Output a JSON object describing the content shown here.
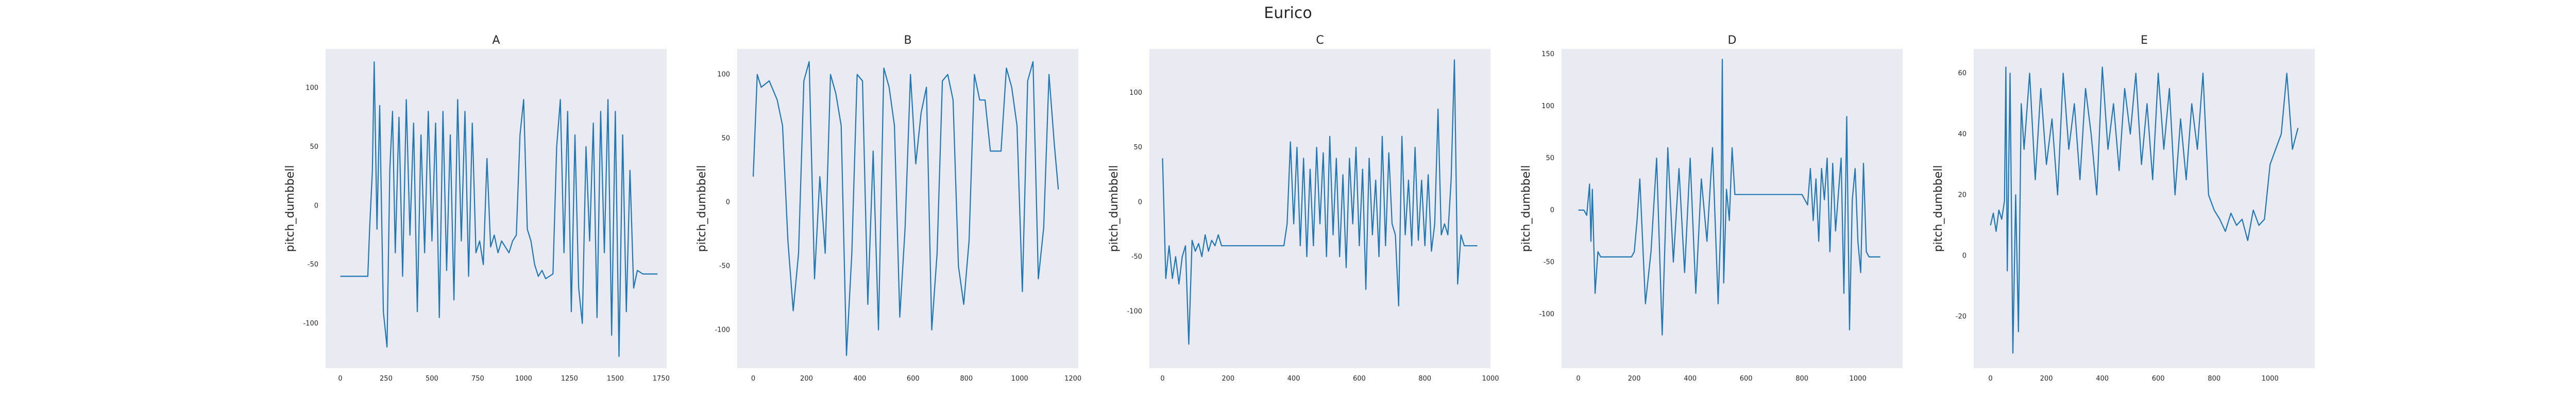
{
  "figure_title": "Eurico",
  "colors": {
    "panel_bg": "#EAEAF2",
    "line": "#1F77B4",
    "text": "#262626"
  },
  "chart_data": [
    {
      "type": "line",
      "title": "A",
      "xlabel": "",
      "ylabel": "pitch_dumbbell",
      "xlim": [
        -80,
        1780
      ],
      "ylim": [
        -138,
        133
      ],
      "xticks": [
        0,
        250,
        500,
        750,
        1000,
        1250,
        1500,
        1750
      ],
      "yticks": [
        -100,
        -50,
        0,
        50,
        100
      ],
      "grid": false,
      "x": [
        0,
        60,
        110,
        150,
        160,
        175,
        185,
        200,
        215,
        235,
        255,
        270,
        285,
        300,
        320,
        340,
        360,
        380,
        400,
        420,
        440,
        460,
        480,
        500,
        520,
        540,
        560,
        580,
        600,
        620,
        640,
        660,
        680,
        700,
        720,
        740,
        760,
        780,
        800,
        820,
        840,
        860,
        880,
        900,
        920,
        940,
        960,
        980,
        1000,
        1020,
        1040,
        1060,
        1080,
        1100,
        1120,
        1140,
        1160,
        1180,
        1200,
        1220,
        1240,
        1260,
        1280,
        1300,
        1320,
        1340,
        1360,
        1380,
        1400,
        1420,
        1440,
        1460,
        1480,
        1500,
        1520,
        1540,
        1560,
        1580,
        1600,
        1620,
        1650,
        1700,
        1730
      ],
      "y": [
        -60,
        -60,
        -60,
        -60,
        -20,
        30,
        122,
        -20,
        85,
        -90,
        -120,
        30,
        80,
        -40,
        75,
        -60,
        90,
        -25,
        70,
        -90,
        60,
        -40,
        80,
        -30,
        70,
        -95,
        80,
        -55,
        60,
        -80,
        90,
        -30,
        80,
        -60,
        70,
        -40,
        -30,
        -50,
        40,
        -35,
        -25,
        -40,
        -30,
        -35,
        -40,
        -30,
        -25,
        60,
        90,
        -20,
        -30,
        -50,
        -60,
        -55,
        -62,
        -60,
        -58,
        50,
        90,
        -40,
        80,
        -90,
        60,
        -70,
        -100,
        50,
        -30,
        70,
        -95,
        80,
        -40,
        90,
        -110,
        80,
        -128,
        60,
        -90,
        30,
        -70,
        -55,
        -58,
        -58,
        -58
      ]
    },
    {
      "type": "line",
      "title": "B",
      "xlabel": "",
      "ylabel": "pitch_dumbbell",
      "xlim": [
        -60,
        1220
      ],
      "ylim": [
        -130,
        120
      ],
      "xticks": [
        0,
        200,
        400,
        600,
        800,
        1000,
        1200
      ],
      "yticks": [
        -100,
        -50,
        0,
        50,
        100
      ],
      "grid": false,
      "x": [
        0,
        15,
        30,
        60,
        90,
        110,
        130,
        150,
        170,
        190,
        210,
        230,
        250,
        270,
        290,
        310,
        330,
        350,
        370,
        390,
        410,
        430,
        450,
        470,
        490,
        510,
        530,
        550,
        570,
        590,
        610,
        630,
        650,
        670,
        690,
        710,
        730,
        750,
        770,
        790,
        810,
        830,
        850,
        870,
        890,
        910,
        930,
        950,
        970,
        990,
        1010,
        1030,
        1050,
        1070,
        1090,
        1110,
        1130,
        1145
      ],
      "y": [
        20,
        100,
        90,
        95,
        80,
        60,
        -30,
        -85,
        -40,
        95,
        110,
        -60,
        20,
        -40,
        100,
        85,
        60,
        -120,
        -40,
        100,
        95,
        -80,
        40,
        -100,
        105,
        90,
        60,
        -90,
        -20,
        100,
        30,
        70,
        90,
        -100,
        -40,
        95,
        100,
        80,
        -50,
        -80,
        -30,
        100,
        80,
        80,
        40,
        40,
        40,
        105,
        90,
        60,
        -70,
        95,
        110,
        -60,
        -20,
        100,
        45,
        10
      ]
    },
    {
      "type": "line",
      "title": "C",
      "xlabel": "",
      "ylabel": "pitch_dumbbell",
      "xlim": [
        -40,
        1000
      ],
      "ylim": [
        -152,
        140
      ],
      "xticks": [
        0,
        200,
        400,
        600,
        800,
        1000
      ],
      "yticks": [
        -100,
        -50,
        0,
        50,
        100
      ],
      "grid": false,
      "x": [
        0,
        10,
        20,
        30,
        40,
        50,
        60,
        70,
        80,
        90,
        100,
        110,
        120,
        130,
        140,
        150,
        160,
        170,
        180,
        200,
        250,
        300,
        350,
        370,
        380,
        390,
        400,
        410,
        420,
        430,
        440,
        450,
        460,
        470,
        480,
        490,
        500,
        510,
        520,
        530,
        540,
        550,
        560,
        570,
        580,
        590,
        600,
        610,
        620,
        630,
        640,
        650,
        660,
        670,
        680,
        690,
        700,
        710,
        720,
        730,
        740,
        750,
        760,
        770,
        780,
        790,
        800,
        810,
        820,
        830,
        840,
        850,
        860,
        870,
        880,
        890,
        900,
        910,
        920,
        930,
        940,
        960
      ],
      "y": [
        40,
        -70,
        -40,
        -70,
        -50,
        -75,
        -50,
        -40,
        -130,
        -35,
        -45,
        -38,
        -50,
        -30,
        -45,
        -35,
        -40,
        -30,
        -40,
        -40,
        -40,
        -40,
        -40,
        -40,
        -20,
        55,
        -20,
        50,
        -40,
        40,
        -50,
        30,
        -40,
        50,
        -20,
        45,
        -50,
        60,
        -30,
        40,
        -50,
        25,
        -60,
        40,
        -20,
        50,
        -40,
        30,
        -80,
        40,
        -30,
        20,
        -50,
        60,
        -40,
        45,
        -20,
        -30,
        -95,
        60,
        -30,
        20,
        -40,
        50,
        -35,
        20,
        -40,
        25,
        -45,
        -20,
        85,
        -30,
        -20,
        -30,
        20,
        130,
        -75,
        -30,
        -40,
        -40,
        -40,
        -40
      ]
    },
    {
      "type": "line",
      "title": "D",
      "xlabel": "",
      "ylabel": "pitch_dumbbell",
      "xlim": [
        -60,
        1160
      ],
      "ylim": [
        -152,
        155
      ],
      "xticks": [
        0,
        200,
        400,
        600,
        800,
        1000
      ],
      "yticks": [
        -100,
        -50,
        0,
        50,
        100,
        150
      ],
      "grid": false,
      "x": [
        0,
        20,
        30,
        40,
        45,
        50,
        60,
        70,
        80,
        100,
        150,
        190,
        200,
        210,
        220,
        240,
        260,
        280,
        300,
        320,
        340,
        360,
        380,
        400,
        420,
        440,
        460,
        480,
        500,
        510,
        515,
        520,
        530,
        540,
        550,
        560,
        570,
        600,
        700,
        800,
        820,
        830,
        840,
        850,
        860,
        870,
        880,
        890,
        900,
        910,
        920,
        940,
        950,
        960,
        970,
        980,
        990,
        1000,
        1010,
        1020,
        1030,
        1040,
        1050,
        1060,
        1080
      ],
      "y": [
        0,
        0,
        -5,
        25,
        -30,
        20,
        -80,
        -40,
        -45,
        -45,
        -45,
        -45,
        -40,
        -10,
        30,
        -90,
        -40,
        50,
        -120,
        60,
        -50,
        40,
        -60,
        50,
        -80,
        30,
        -30,
        60,
        -90,
        -10,
        145,
        -70,
        20,
        -10,
        60,
        15,
        15,
        15,
        15,
        15,
        5,
        40,
        -10,
        30,
        -30,
        40,
        10,
        50,
        -40,
        45,
        -20,
        50,
        -80,
        90,
        -115,
        10,
        40,
        -30,
        -60,
        45,
        -40,
        -45,
        -45,
        -45,
        -45
      ]
    },
    {
      "type": "line",
      "title": "E",
      "xlabel": "",
      "ylabel": "pitch_dumbbell",
      "xlim": [
        -60,
        1160
      ],
      "ylim": [
        -37,
        68
      ],
      "xticks": [
        0,
        200,
        400,
        600,
        800,
        1000
      ],
      "yticks": [
        -20,
        0,
        20,
        40,
        60
      ],
      "grid": false,
      "x": [
        0,
        10,
        20,
        30,
        40,
        50,
        55,
        60,
        70,
        80,
        90,
        100,
        110,
        120,
        140,
        160,
        180,
        200,
        220,
        240,
        260,
        280,
        300,
        320,
        340,
        360,
        380,
        400,
        420,
        440,
        460,
        480,
        500,
        520,
        540,
        560,
        580,
        600,
        620,
        640,
        660,
        680,
        700,
        720,
        740,
        760,
        780,
        800,
        820,
        840,
        860,
        880,
        900,
        920,
        940,
        960,
        980,
        1000,
        1020,
        1040,
        1060,
        1080,
        1100
      ],
      "y": [
        10,
        14,
        8,
        15,
        12,
        18,
        62,
        -5,
        60,
        -32,
        20,
        -25,
        50,
        35,
        60,
        25,
        55,
        30,
        45,
        20,
        60,
        35,
        50,
        25,
        55,
        40,
        20,
        62,
        35,
        50,
        28,
        55,
        40,
        60,
        30,
        50,
        25,
        60,
        35,
        55,
        20,
        45,
        25,
        50,
        35,
        60,
        20,
        15,
        12,
        8,
        14,
        10,
        12,
        5,
        15,
        10,
        12,
        30,
        35,
        40,
        60,
        35,
        42
      ]
    }
  ]
}
